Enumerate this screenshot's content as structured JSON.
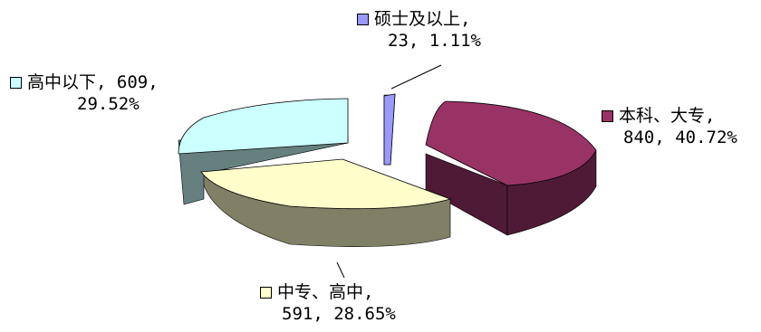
{
  "chart_data": {
    "type": "pie",
    "style": "3d-exploded",
    "slices": [
      {
        "name": "本科、大专,",
        "value": 840,
        "percent": "40.72%",
        "color": "#993366",
        "side_color": "#4f1a35"
      },
      {
        "name": "中专、高中,",
        "value": 591,
        "percent": "28.65%",
        "color": "#ffffcc",
        "side_color": "#808066"
      },
      {
        "name": "高中以下,",
        "value": 609,
        "percent": "29.52%",
        "color": "#ccffff",
        "side_color": "#668080"
      },
      {
        "name": "硕士及以上,",
        "value": 23,
        "percent": "1.11%",
        "color": "#9999ff",
        "side_color": "#4d4d80"
      }
    ],
    "labels": [
      {
        "swatch": "#993366",
        "line1": "本科、大专,",
        "line2": "840, 40.72%"
      },
      {
        "swatch": "#ffffcc",
        "line1": "中专、高中,",
        "line2": "591, 28.65%"
      },
      {
        "swatch": "#ccffff",
        "line1": "高中以下, 609,",
        "line2": "29.52%"
      },
      {
        "swatch": "#9999ff",
        "line1": "硕士及以上,",
        "line2": "23, 1.11%"
      }
    ],
    "legend": "none"
  }
}
